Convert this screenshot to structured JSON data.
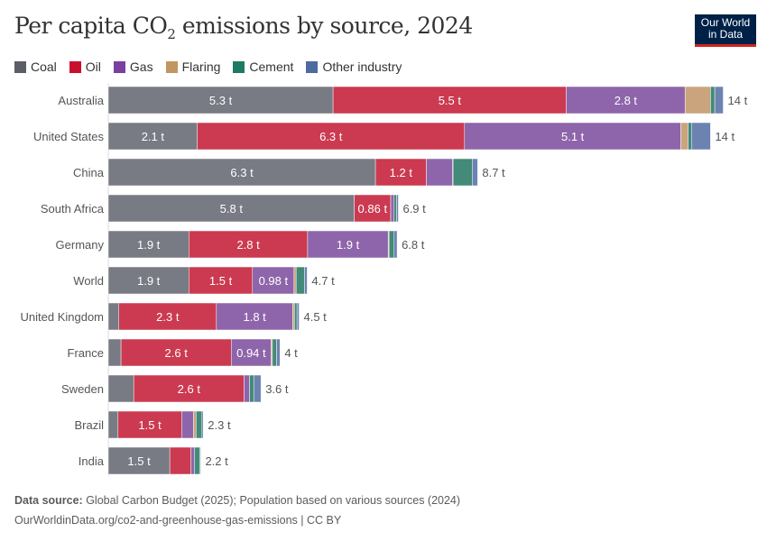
{
  "title_main": "Per capita CO",
  "title_sub": "2",
  "title_rest": " emissions by source, 2024",
  "logo": {
    "line1": "Our World",
    "line2": "in Data"
  },
  "footer": {
    "source_label": "Data source:",
    "source_text": " Global Carbon Budget (2025); Population based on various sources (2024)",
    "url": "OurWorldinData.org/co2-and-greenhouse-gas-emissions | CC BY"
  },
  "chart_data": {
    "type": "bar",
    "orientation": "horizontal",
    "stacked": true,
    "unit": "t",
    "title": "Per capita CO2 emissions by source, 2024",
    "legend_position": "top-left",
    "series": [
      {
        "name": "Coal",
        "color": "#5b5e66",
        "bar_color": "#787a84"
      },
      {
        "name": "Oil",
        "color": "#c8102e",
        "bar_color": "#cb3a50"
      },
      {
        "name": "Gas",
        "color": "#7a40a0",
        "bar_color": "#8e65aa"
      },
      {
        "name": "Flaring",
        "color": "#c09663",
        "bar_color": "#c9a47c"
      },
      {
        "name": "Cement",
        "color": "#1f7a63",
        "bar_color": "#438a78"
      },
      {
        "name": "Other industry",
        "color": "#4c6ba0",
        "bar_color": "#6c83b2"
      }
    ],
    "categories": [
      "Australia",
      "United States",
      "China",
      "South Africa",
      "Germany",
      "World",
      "United Kingdom",
      "France",
      "Sweden",
      "Brazil",
      "India"
    ],
    "values": [
      [
        5.3,
        5.5,
        2.8,
        0.6,
        0.1,
        0.2
      ],
      [
        2.1,
        6.3,
        5.1,
        0.17,
        0.08,
        0.45
      ],
      [
        6.3,
        1.2,
        0.62,
        0.01,
        0.45,
        0.13
      ],
      [
        5.8,
        0.86,
        0.08,
        0.0,
        0.06,
        0.04
      ],
      [
        1.9,
        2.8,
        1.9,
        0.02,
        0.12,
        0.07
      ],
      [
        1.9,
        1.5,
        0.98,
        0.05,
        0.2,
        0.06
      ],
      [
        0.25,
        2.3,
        1.8,
        0.04,
        0.06,
        0.05
      ],
      [
        0.3,
        2.6,
        0.94,
        0.03,
        0.1,
        0.08
      ],
      [
        0.6,
        2.6,
        0.13,
        0.0,
        0.1,
        0.17
      ],
      [
        0.23,
        1.5,
        0.28,
        0.06,
        0.14,
        0.03
      ],
      [
        1.45,
        0.5,
        0.08,
        0.0,
        0.13,
        0.02
      ]
    ],
    "segment_labels": [
      [
        "5.3 t",
        "5.5 t",
        "2.8 t",
        null,
        null,
        null
      ],
      [
        "2.1 t",
        "6.3 t",
        "5.1 t",
        null,
        null,
        null
      ],
      [
        "6.3 t",
        "1.2 t",
        null,
        null,
        null,
        null
      ],
      [
        "5.8 t",
        "0.86 t",
        null,
        null,
        null,
        null
      ],
      [
        "1.9 t",
        "2.8 t",
        "1.9 t",
        null,
        null,
        null
      ],
      [
        "1.9 t",
        "1.5 t",
        "0.98 t",
        null,
        null,
        null
      ],
      [
        null,
        "2.3 t",
        "1.8 t",
        null,
        null,
        null
      ],
      [
        null,
        "2.6 t",
        "0.94 t",
        null,
        null,
        null
      ],
      [
        null,
        "2.6 t",
        null,
        null,
        null,
        null
      ],
      [
        null,
        "1.5 t",
        null,
        null,
        null,
        null
      ],
      [
        "1.5 t",
        null,
        null,
        null,
        null,
        null
      ]
    ],
    "totals": [
      "14 t",
      "14 t",
      "8.7 t",
      "6.9 t",
      "6.8 t",
      "4.7 t",
      "4.5 t",
      "4 t",
      "3.6 t",
      "2.3 t",
      "2.2 t"
    ],
    "xlim": [
      0,
      14.4
    ]
  }
}
